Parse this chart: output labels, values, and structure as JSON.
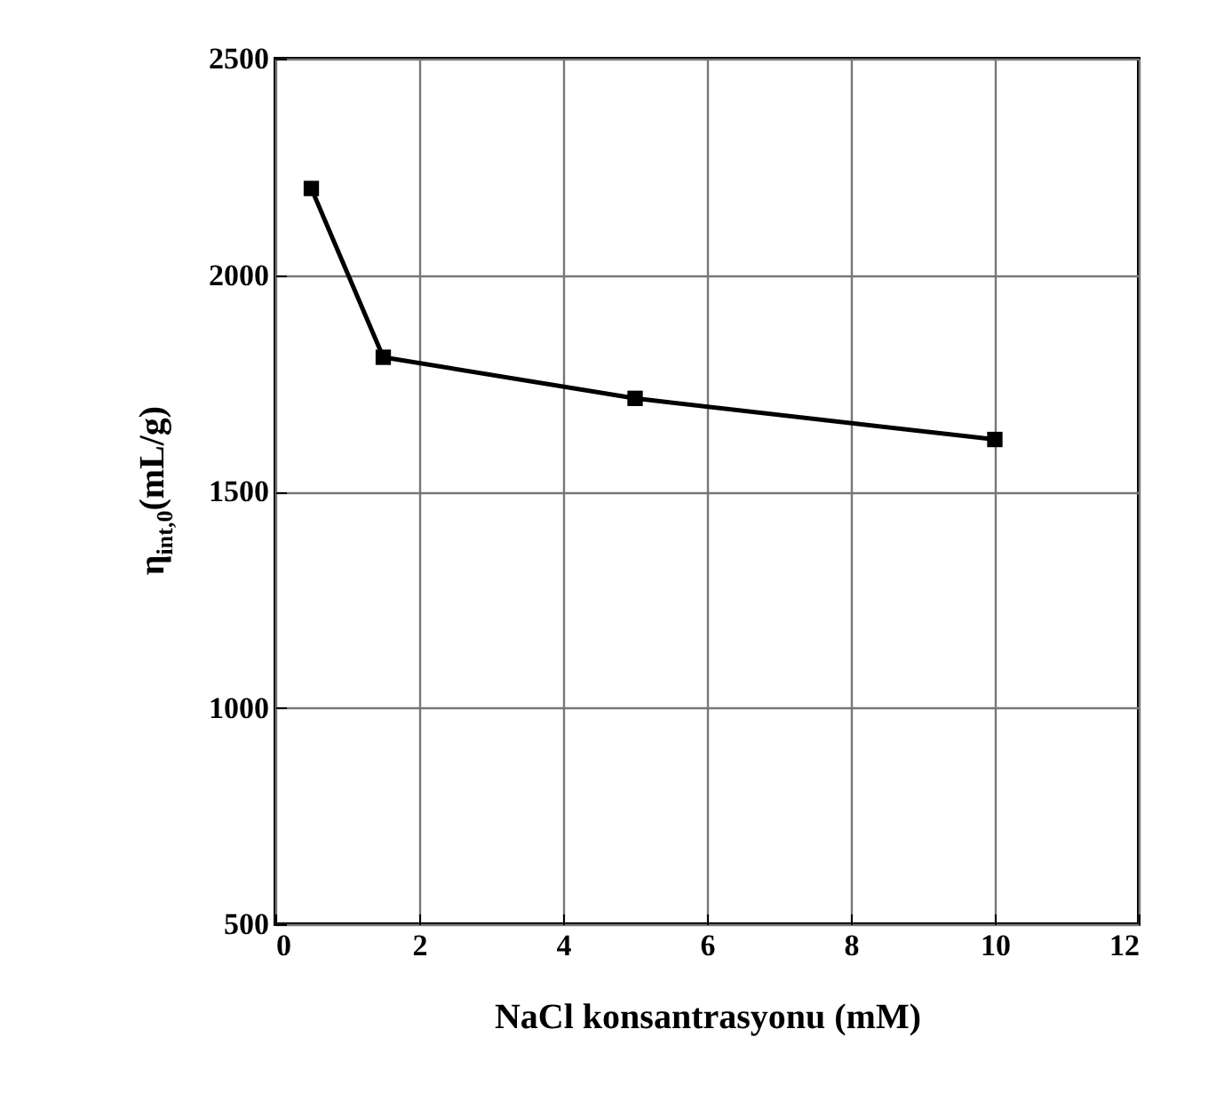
{
  "chart_data": {
    "type": "line",
    "xlabel": "NaCl konsantrasyonu (mM)",
    "ylabel": "η$_{int,0}$(mL/g)",
    "x": [
      0.5,
      1.5,
      5,
      10
    ],
    "series": [
      {
        "color": "#000000",
        "values": [
          2200,
          1810,
          1715,
          1620
        ]
      }
    ],
    "xlim": [
      0,
      12
    ],
    "xticks": [
      0,
      2,
      4,
      6,
      8,
      10,
      12
    ],
    "ylim": [
      500,
      2500
    ],
    "yticks": [
      500,
      1000,
      1500,
      2000,
      2500
    ],
    "grid": true,
    "marker": "square",
    "line_style": "solid"
  }
}
